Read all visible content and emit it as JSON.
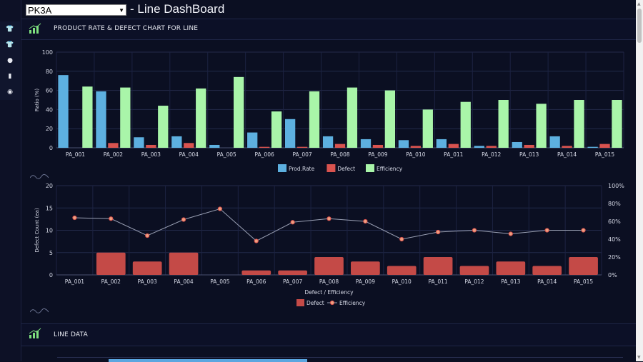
{
  "header": {
    "line_selected": "PK3A",
    "title": "- Line DashBoard"
  },
  "sidebar": {
    "items": [
      {
        "icon": "shirt-icon"
      },
      {
        "icon": "shirt-icon"
      },
      {
        "icon": "palette-icon"
      },
      {
        "icon": "document-icon"
      },
      {
        "icon": "clock-icon"
      }
    ]
  },
  "panels": {
    "chart_panel_title": "PRODUCT RATE & DEFECT CHART FOR LINE",
    "line_data_title": "LINE DATA"
  },
  "chart_data": [
    {
      "type": "bar",
      "categories": [
        "PA_001",
        "PA_002",
        "PA_003",
        "PA_004",
        "PA_005",
        "PA_006",
        "PA_007",
        "PA_008",
        "PA_009",
        "PA_010",
        "PA_011",
        "PA_012",
        "PA_013",
        "PA_014",
        "PA_015"
      ],
      "series": [
        {
          "name": "Prod.Rate",
          "color": "#5db0e0",
          "values": [
            76,
            59,
            11,
            12,
            3,
            16,
            30,
            12,
            9,
            8,
            9,
            2,
            6,
            12,
            1
          ]
        },
        {
          "name": "Defect",
          "color": "#d9534f",
          "values": [
            0,
            5,
            3,
            5,
            0,
            1,
            1,
            4,
            3,
            2,
            4,
            2,
            3,
            2,
            4
          ]
        },
        {
          "name": "Efficiency",
          "color": "#a9f5a9",
          "values": [
            64,
            63,
            44,
            62,
            74,
            38,
            59,
            63,
            60,
            40,
            48,
            50,
            46,
            50,
            50
          ]
        }
      ],
      "ylabel": "Ratio (%)",
      "ylim": [
        0,
        100
      ],
      "yticks": [
        0,
        20,
        40,
        60,
        80,
        100
      ],
      "legend": "bottom"
    },
    {
      "type": "bar+line",
      "categories": [
        "PA_001",
        "PA_002",
        "PA_003",
        "PA_004",
        "PA_005",
        "PA_006",
        "PA_007",
        "PA_008",
        "PA_009",
        "PA_010",
        "PA_011",
        "PA_012",
        "PA_013",
        "PA_014",
        "PA_015"
      ],
      "series": [
        {
          "name": "Defect",
          "type": "bar",
          "color": "#c44a47",
          "values": [
            0,
            5,
            3,
            5,
            0,
            1,
            1,
            4,
            3,
            2,
            4,
            2,
            3,
            2,
            4
          ]
        },
        {
          "name": "Efficiency",
          "type": "line",
          "color": "#d9534f",
          "values": [
            64,
            63,
            44,
            62,
            74,
            38,
            59,
            63,
            60,
            40,
            48,
            50,
            46,
            50,
            50
          ]
        }
      ],
      "xlabel": "Defect / Efficiency",
      "ylabel": "Defect Count (ea)",
      "ylim": [
        0,
        20
      ],
      "yticks": [
        0,
        5,
        10,
        15,
        20
      ],
      "y2lim": [
        0,
        100
      ],
      "y2ticks": [
        "0%",
        "20%",
        "40%",
        "60%",
        "80%",
        "100%"
      ],
      "legend": "bottom"
    }
  ]
}
